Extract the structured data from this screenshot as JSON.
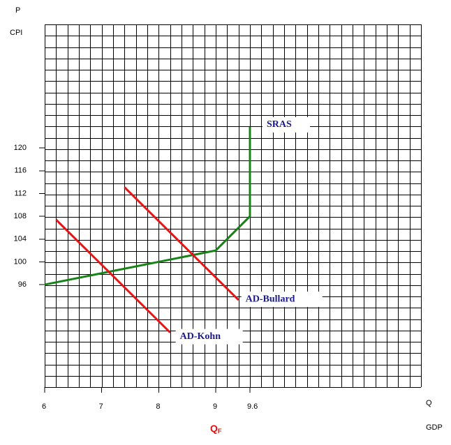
{
  "chart_data": {
    "type": "line",
    "y_label": "P",
    "y_label_2": "CPI",
    "x_label": "Q",
    "x_label_2": "GDP",
    "annotation": "Q",
    "annotation_sub": "F",
    "annotation_x": 9,
    "xlim": [
      6,
      12.6
    ],
    "xticks": [
      6,
      7,
      8,
      9,
      9.6
    ],
    "ylim": [
      78,
      141.7
    ],
    "yticks": [
      96,
      100,
      104,
      108,
      112,
      116,
      120
    ],
    "grid": true,
    "series": [
      {
        "name": "SRAS",
        "color": "#178217",
        "x": [
          6,
          9,
          9.6,
          9.6
        ],
        "values": [
          96,
          102,
          108,
          123.7
        ]
      },
      {
        "name": "AD-Bullard",
        "color": "#e81414",
        "x": [
          7.4,
          9.4
        ],
        "values": [
          113.1,
          93.3
        ]
      },
      {
        "name": "AD-Kohn",
        "color": "#e81414",
        "x": [
          6.2,
          8.2
        ],
        "values": [
          107.4,
          87.6
        ]
      }
    ]
  }
}
